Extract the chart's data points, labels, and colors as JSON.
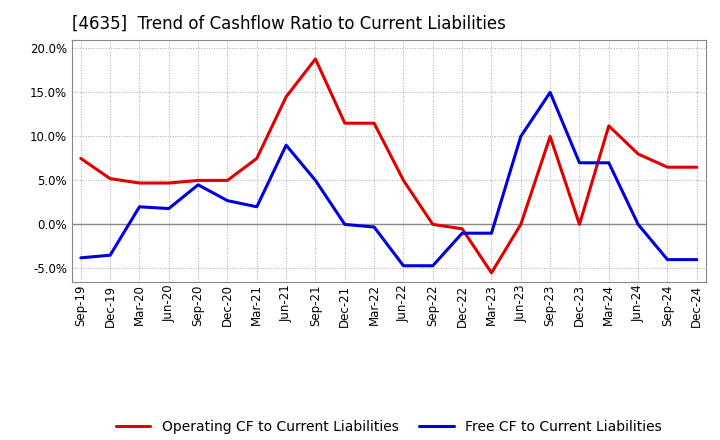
{
  "title": "[4635]  Trend of Cashflow Ratio to Current Liabilities",
  "x_labels": [
    "Sep-19",
    "Dec-19",
    "Mar-20",
    "Jun-20",
    "Sep-20",
    "Dec-20",
    "Mar-21",
    "Jun-21",
    "Sep-21",
    "Dec-21",
    "Mar-22",
    "Jun-22",
    "Sep-22",
    "Dec-22",
    "Mar-23",
    "Jun-23",
    "Sep-23",
    "Dec-23",
    "Mar-24",
    "Jun-24",
    "Sep-24",
    "Dec-24"
  ],
  "operating_cf": [
    7.5,
    5.2,
    4.7,
    4.7,
    5.0,
    5.0,
    7.5,
    14.5,
    18.8,
    11.5,
    11.5,
    5.0,
    0.0,
    -0.5,
    -5.5,
    0.0,
    10.0,
    0.0,
    11.2,
    8.0,
    6.5,
    6.5
  ],
  "free_cf": [
    -3.8,
    -3.5,
    2.0,
    1.8,
    4.5,
    2.7,
    2.0,
    9.0,
    5.0,
    0.0,
    -0.3,
    -4.7,
    -4.7,
    -1.0,
    -1.0,
    10.0,
    15.0,
    7.0,
    7.0,
    0.0,
    -4.0,
    -4.0
  ],
  "ylim": [
    -6.5,
    21.0
  ],
  "yticks": [
    -5.0,
    0.0,
    5.0,
    10.0,
    15.0,
    20.0
  ],
  "operating_color": "#e00000",
  "free_color": "#0000dd",
  "background_color": "#ffffff",
  "grid_color": "#aaaaaa",
  "zero_line_color": "#888888",
  "legend_operating": "Operating CF to Current Liabilities",
  "legend_free": "Free CF to Current Liabilities",
  "title_fontsize": 12,
  "axis_fontsize": 8.5,
  "legend_fontsize": 10,
  "line_width": 2.2
}
